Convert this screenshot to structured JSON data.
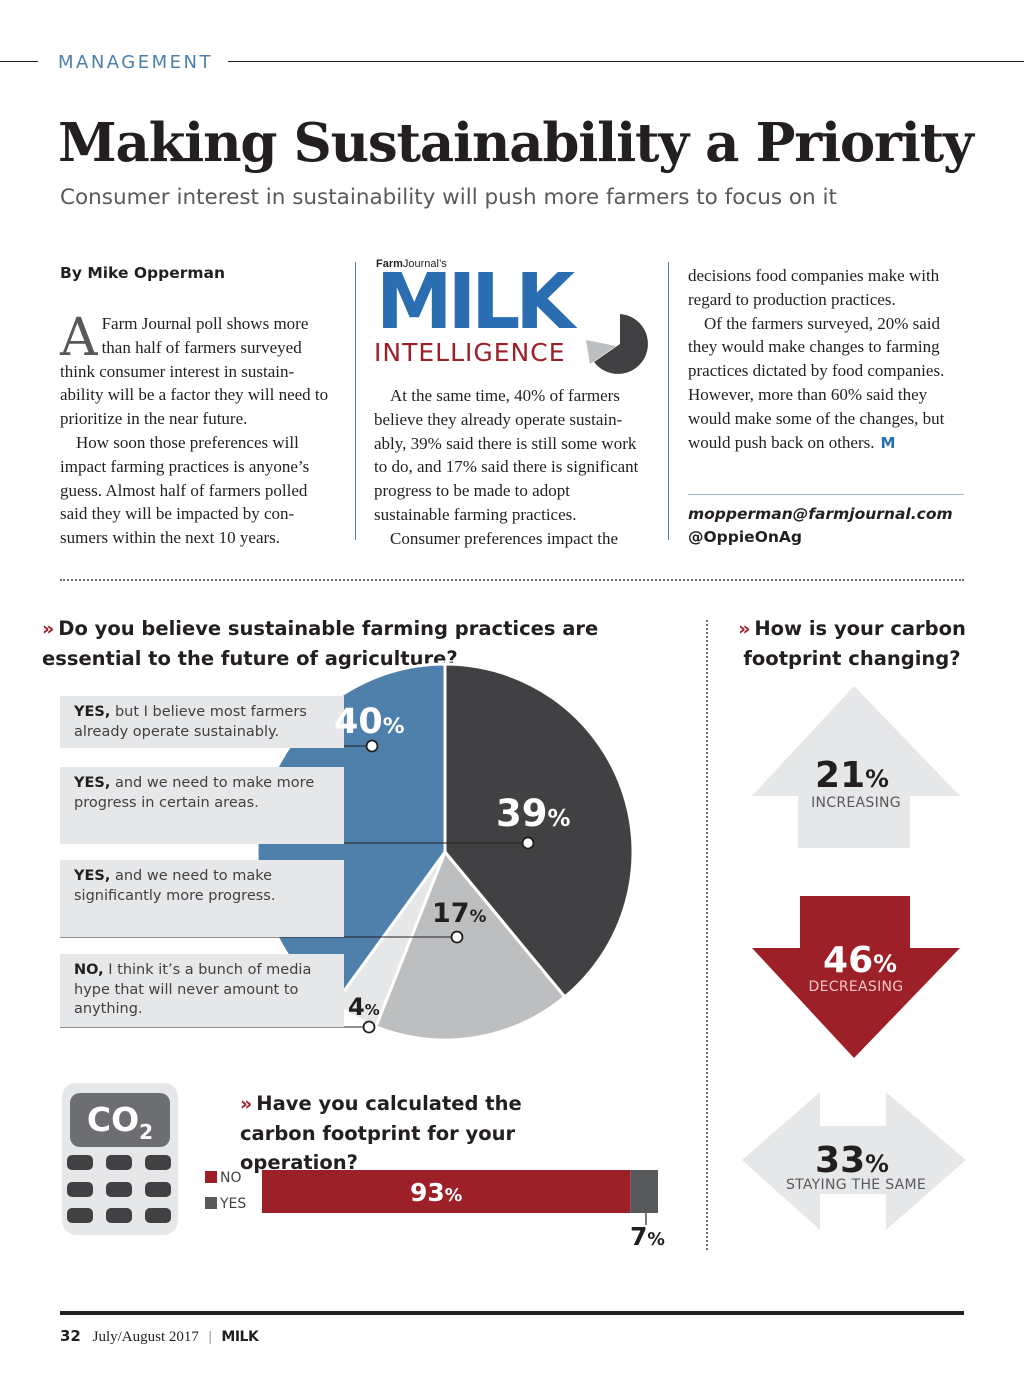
{
  "header": {
    "section": "MANAGEMENT",
    "title": "Making Sustainability a Priority",
    "deck": "Consumer interest in sustainability will push more farmers to focus on it"
  },
  "article": {
    "byline": "By Mike Opperman",
    "dropcap": "A",
    "col1": [
      " Farm Journal poll shows more than half of farmers surveyed think consumer interest in sustain-ability will be a factor they will need to prioritize in the near future.",
      "How soon those preferences will impact farming practices is anyone’s guess. Almost half of farmers polled said they will be impacted by con-sumers within the next 10 years."
    ],
    "col2": [
      "At the same time, 40% of farmers believe they already operate sustain-ably, 39% said there is still some work to do, and 17% said there is significant progress to be made to adopt sustainable farming practices.",
      "Consumer preferences impact the"
    ],
    "col3": [
      "decisions food companies make with regard to production practices.",
      "Of the farmers surveyed, 20% said they would make changes to farming practices dictated by food companies. However, more than 60% said they would make some of the changes, but would push back on others."
    ],
    "end_mark": "M",
    "email": "mopperman@farmjournal.com",
    "handle": "@OppieOnAg"
  },
  "logo": {
    "small_bold": "Farm",
    "small_rest": "Journal’s",
    "main": "MILK",
    "sub": "INTELLIGENCE",
    "colors": {
      "blue": "#2a6db1",
      "red": "#9d1f27",
      "dark": "#414042"
    }
  },
  "chart_data": [
    {
      "type": "pie",
      "title": "Do you believe sustainable farming practices are essential to the future of agriculture?",
      "slices": [
        {
          "label_bold": "YES,",
          "label_rest": " but I believe most farmers already operate sustainably.",
          "value": 40,
          "display": "40",
          "color": "#4f7fab"
        },
        {
          "label_bold": "YES,",
          "label_rest": " and we need to make more progress in certain areas.",
          "value": 39,
          "display": "39",
          "color": "#414042"
        },
        {
          "label_bold": "YES,",
          "label_rest": " and we need to make significantly more progress.",
          "value": 17,
          "display": "17",
          "color": "#bcbec0"
        },
        {
          "label_bold": "NO,",
          "label_rest": " I think it’s a bunch of media hype that will never amount to anything.",
          "value": 4,
          "display": "4",
          "color": "#e6e7e8"
        }
      ],
      "unit": "%"
    },
    {
      "type": "bar",
      "title": "How is your carbon footprint changing?",
      "categories": [
        "INCREASING",
        "DECREASING",
        "STAYING THE SAME"
      ],
      "values": [
        21,
        46,
        33
      ],
      "display": [
        "21",
        "46",
        "33"
      ],
      "colors": [
        "#e6e7e8",
        "#9d1f27",
        "#e6e7e8"
      ],
      "unit": "%"
    },
    {
      "type": "bar",
      "title": "Have you calculated the carbon footprint for your operation?",
      "series": [
        {
          "name": "NO",
          "value": 93,
          "display": "93",
          "color": "#9d1f27"
        },
        {
          "name": "YES",
          "value": 7,
          "display": "7",
          "color": "#58595b"
        }
      ],
      "unit": "%"
    }
  ],
  "calculator": {
    "screen": "CO",
    "sub": "2"
  },
  "footer": {
    "page": "32",
    "issue": "July/August 2017",
    "separator": "|",
    "magazine": "MILK"
  }
}
